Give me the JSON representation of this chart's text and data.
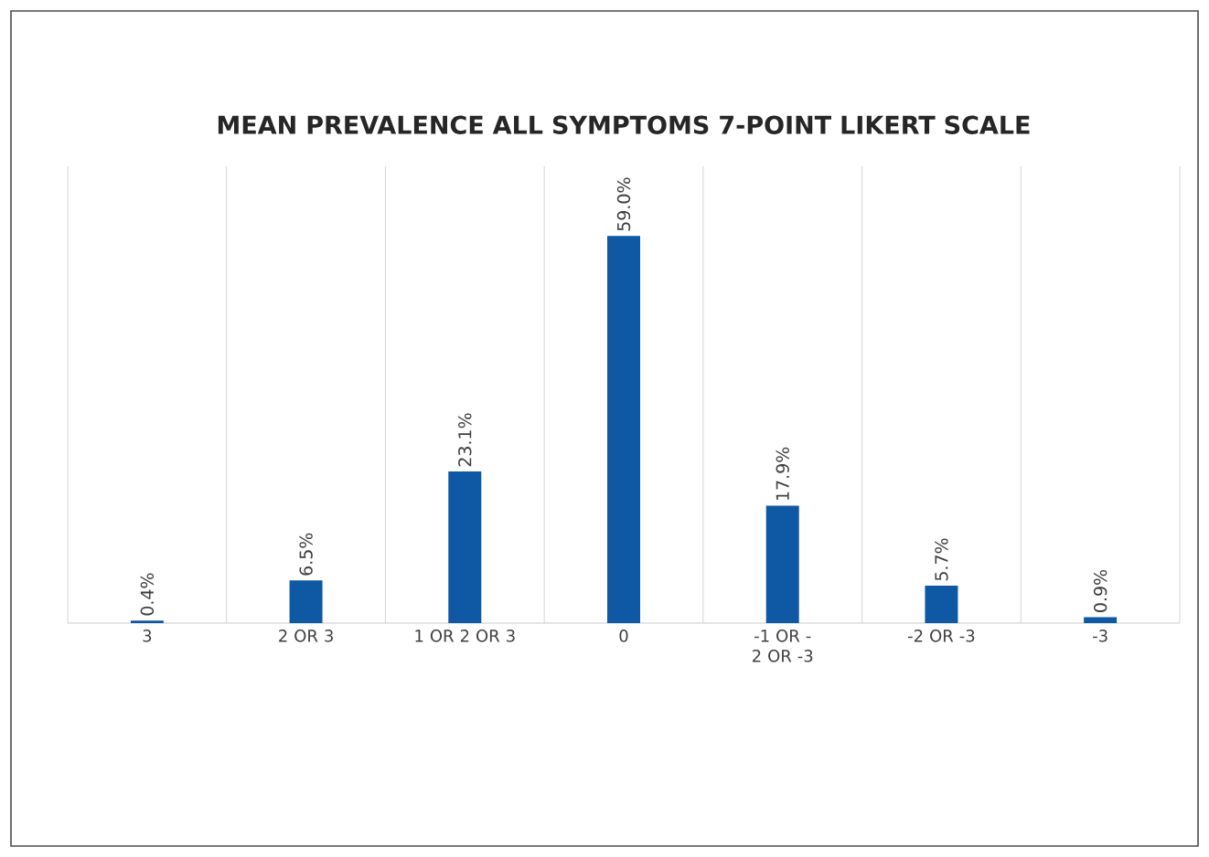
{
  "chart_data": {
    "type": "bar",
    "title": "MEAN PREVALENCE  ALL SYMPTOMS 7-POINT LIKERT SCALE",
    "categories": [
      "3",
      "2 OR 3",
      "1 OR 2 OR 3",
      "0",
      "-1 OR -2 OR -3",
      "-2 OR -3",
      "-3"
    ],
    "values": [
      0.4,
      6.5,
      23.1,
      59.0,
      17.9,
      5.7,
      0.9
    ],
    "value_labels": [
      "0.4%",
      "6.5%",
      "23.1%",
      "59.0%",
      "17.9%",
      "5.7%",
      "0.9%"
    ],
    "color": "#0f59a4",
    "grid": "x",
    "tick_labels": "x"
  }
}
